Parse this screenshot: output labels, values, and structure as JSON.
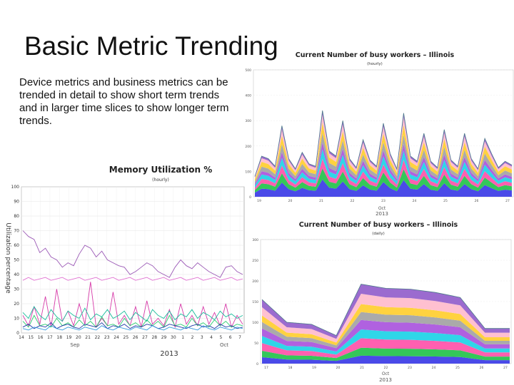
{
  "slide": {
    "title": "Basic Metric Trending",
    "body": "Device metrics and business metrics can be trended in detail to show short term trends and in larger time slices to show longer term trends."
  },
  "chart_data": [
    {
      "id": "memory",
      "type": "line",
      "title": "Memory Utilization %",
      "subtitle": "(hourly)",
      "ylabel": "Utilization percentage",
      "xlabel": "2013",
      "ylim": [
        0,
        100
      ],
      "yticks": [
        "0",
        "10",
        "20",
        "30",
        "40",
        "50",
        "60",
        "70",
        "80",
        "90",
        "100"
      ],
      "xticks": [
        "14",
        "15",
        "16",
        "17",
        "18",
        "19",
        "20",
        "21",
        "22",
        "23",
        "24",
        "25",
        "26",
        "27",
        "28",
        "29",
        "30",
        "1",
        "2",
        "3",
        "4",
        "5",
        "6",
        "7"
      ],
      "month_labels": [
        "Sep",
        "Oct"
      ],
      "grid": true,
      "series": [
        {
          "color": "#9b59b6",
          "values": [
            70,
            66,
            64,
            55,
            58,
            52,
            50,
            45,
            48,
            46,
            54,
            60,
            58,
            52,
            56,
            50,
            48,
            46,
            45,
            40,
            42,
            45,
            48,
            46,
            42,
            40,
            38,
            45,
            50,
            46,
            44,
            48,
            45,
            42,
            40,
            38,
            45,
            46,
            42,
            40
          ]
        },
        {
          "color": "#e06fd0",
          "values": [
            36,
            38,
            36,
            37,
            38,
            36,
            37,
            38,
            36,
            37,
            38,
            36,
            37,
            38,
            36,
            37,
            38,
            36,
            37,
            38,
            36,
            37,
            38,
            36,
            37,
            38,
            36,
            37,
            38,
            36,
            37,
            38,
            36,
            37,
            38,
            36,
            37,
            38,
            36,
            37
          ]
        },
        {
          "color": "#d63aa8",
          "values": [
            12,
            5,
            18,
            6,
            25,
            4,
            30,
            8,
            15,
            5,
            20,
            6,
            35,
            4,
            10,
            5,
            28,
            6,
            12,
            5,
            18,
            4,
            22,
            6,
            10,
            5,
            16,
            4,
            20,
            6,
            12,
            5,
            18,
            6,
            14,
            5,
            20,
            4,
            12,
            6
          ]
        },
        {
          "color": "#2ecc71",
          "values": [
            8,
            4,
            12,
            5,
            6,
            4,
            10,
            5,
            7,
            4,
            9,
            5,
            8,
            4,
            11,
            5,
            6,
            4,
            10,
            5,
            7,
            4,
            9,
            5,
            8,
            4,
            12,
            5,
            6,
            4,
            10,
            5,
            7,
            4,
            9,
            5,
            8,
            4,
            6,
            5
          ]
        },
        {
          "color": "#1abc9c",
          "values": [
            14,
            10,
            18,
            12,
            9,
            16,
            11,
            8,
            15,
            12,
            10,
            17,
            9,
            13,
            11,
            16,
            10,
            12,
            15,
            9,
            14,
            11,
            8,
            16,
            12,
            10,
            15,
            9,
            13,
            11,
            16,
            10,
            14,
            12,
            9,
            15,
            11,
            13,
            10,
            12
          ]
        },
        {
          "color": "#1f3aa6",
          "values": [
            4,
            6,
            3,
            5,
            4,
            7,
            3,
            5,
            6,
            4,
            3,
            6,
            5,
            4,
            7,
            3,
            5,
            4,
            6,
            3,
            5,
            4,
            6,
            5,
            3,
            4,
            6,
            5,
            4,
            3,
            5,
            6,
            4,
            5,
            3,
            6,
            4,
            5,
            3,
            4
          ]
        },
        {
          "color": "#3498db",
          "values": [
            3,
            2,
            4,
            3,
            2,
            5,
            3,
            2,
            4,
            3,
            2,
            4,
            3,
            2,
            5,
            3,
            2,
            4,
            3,
            2,
            4,
            3,
            2,
            5,
            3,
            2,
            4,
            3,
            2,
            4,
            3,
            2,
            5,
            3,
            2,
            4,
            3,
            2,
            4,
            3
          ]
        }
      ]
    },
    {
      "id": "workers_hourly",
      "type": "area",
      "title": "Current Number of busy workers – Illinois",
      "subtitle": "(hourly)",
      "yticks": [
        "0",
        "100",
        "200",
        "300",
        "400",
        "500"
      ],
      "xticks": [
        "19",
        "20",
        "21",
        "22",
        "23",
        "24",
        "25",
        "26",
        "27"
      ],
      "xlabel_month": "Oct",
      "xlabel_year": "2013",
      "colors": [
        "#4a4ae8",
        "#34c759",
        "#ff5fb0",
        "#2fd6e8",
        "#b061e0",
        "#aaaaaa",
        "#ffd23f",
        "#ffc0d0",
        "#9b6bcf"
      ],
      "totals": [
        80,
        160,
        150,
        120,
        280,
        150,
        110,
        175,
        130,
        120,
        340,
        180,
        160,
        300,
        150,
        115,
        225,
        145,
        120,
        290,
        170,
        110,
        330,
        160,
        140,
        250,
        140,
        115,
        265,
        145,
        120,
        250,
        150,
        110,
        230,
        170,
        115,
        140,
        125
      ],
      "shares": [
        0.2,
        0.13,
        0.11,
        0.11,
        0.08,
        0.11,
        0.12,
        0.09,
        0.05
      ]
    },
    {
      "id": "workers_daily",
      "type": "area",
      "title": "Current Number of busy workers – Illinois",
      "subtitle": "(daily)",
      "yticks": [
        "0",
        "50",
        "100",
        "150",
        "200",
        "250",
        "300"
      ],
      "xticks": [
        "17",
        "18",
        "19",
        "20",
        "21",
        "22",
        "23",
        "24",
        "25",
        "26",
        "27"
      ],
      "xlabel_month": "Oct",
      "xlabel_year": "2013",
      "colors": [
        "#4a4ae8",
        "#34c759",
        "#ff5fb0",
        "#2fd6e8",
        "#b061e0",
        "#aaaaaa",
        "#ffd23f",
        "#ffc0d0",
        "#9b6bcf"
      ],
      "totals": [
        155,
        100,
        95,
        68,
        192,
        182,
        180,
        172,
        160,
        85,
        85
      ],
      "shares": [
        0.1,
        0.1,
        0.12,
        0.11,
        0.12,
        0.1,
        0.1,
        0.13,
        0.12
      ]
    }
  ]
}
